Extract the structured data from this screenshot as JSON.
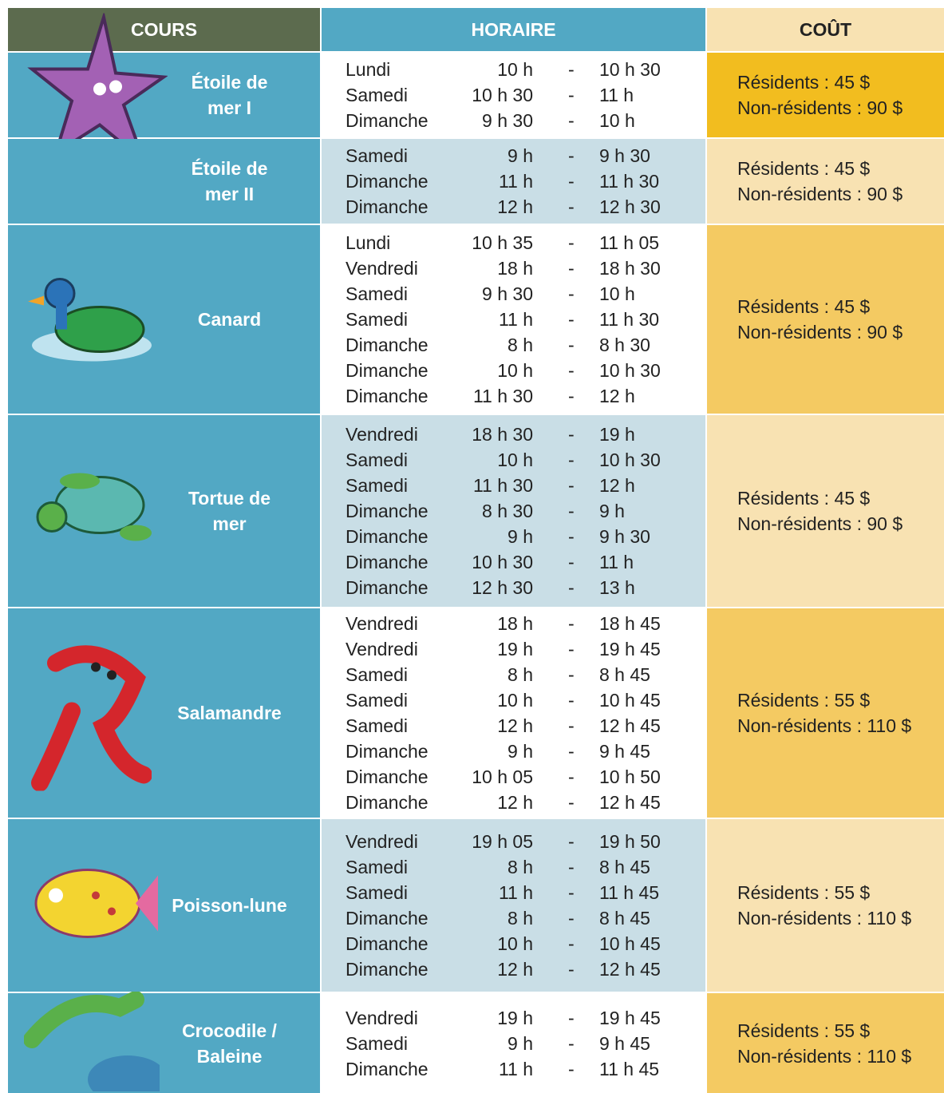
{
  "header": {
    "cours": "COURS",
    "horaire": "HORAIRE",
    "cout": "COÛT"
  },
  "separator": "-",
  "rows": [
    {
      "name": "Étoile de\nmer I",
      "schedule": [
        [
          "Lundi",
          "10 h",
          "10 h 30"
        ],
        [
          "Samedi",
          "10 h 30",
          "11 h"
        ],
        [
          "Dimanche",
          "9 h 30",
          "10 h"
        ]
      ],
      "cost": [
        "Résidents : 45 $",
        "Non-résidents : 90 $"
      ]
    },
    {
      "name": "Étoile de\nmer  II",
      "schedule": [
        [
          "Samedi",
          "9 h",
          "9 h 30"
        ],
        [
          "Dimanche",
          "11 h",
          "11 h 30"
        ],
        [
          "Dimanche",
          "12 h",
          "12 h 30"
        ]
      ],
      "cost": [
        "Résidents : 45 $",
        "Non-résidents : 90 $"
      ]
    },
    {
      "name": "Canard",
      "schedule": [
        [
          "Lundi",
          "10 h 35",
          "11 h 05"
        ],
        [
          "Vendredi",
          "18 h",
          "18 h 30"
        ],
        [
          "Samedi",
          "9 h 30",
          "10 h"
        ],
        [
          "Samedi",
          "11 h",
          "11 h 30"
        ],
        [
          "Dimanche",
          "8 h",
          "8 h 30"
        ],
        [
          "Dimanche",
          "10 h",
          "10 h 30"
        ],
        [
          "Dimanche",
          "11 h 30",
          "12 h"
        ]
      ],
      "cost": [
        "Résidents : 45 $",
        "Non-résidents : 90 $"
      ]
    },
    {
      "name": "Tortue de\nmer",
      "schedule": [
        [
          "Vendredi",
          "18 h 30",
          "19 h"
        ],
        [
          "Samedi",
          "10 h",
          "10 h 30"
        ],
        [
          "Samedi",
          "11 h 30",
          "12 h"
        ],
        [
          "Dimanche",
          "8 h 30",
          "9 h"
        ],
        [
          "Dimanche",
          "9 h",
          "9 h 30"
        ],
        [
          "Dimanche",
          "10 h 30",
          "11 h"
        ],
        [
          "Dimanche",
          "12 h 30",
          "13 h"
        ]
      ],
      "cost": [
        "Résidents : 45 $",
        "Non-résidents : 90 $"
      ]
    },
    {
      "name": "Salamandre",
      "schedule": [
        [
          "Vendredi",
          "18 h",
          "18 h 45"
        ],
        [
          "Vendredi",
          "19 h",
          "19 h 45"
        ],
        [
          "Samedi",
          "8 h",
          "8 h 45"
        ],
        [
          "Samedi",
          "10 h",
          "10 h 45"
        ],
        [
          "Samedi",
          "12 h",
          "12 h 45"
        ],
        [
          "Dimanche",
          "9 h",
          "9 h 45"
        ],
        [
          "Dimanche",
          "10 h 05",
          "10 h 50"
        ],
        [
          "Dimanche",
          "12 h",
          "12 h 45"
        ]
      ],
      "cost": [
        "Résidents : 55 $",
        "Non-résidents : 110 $"
      ]
    },
    {
      "name": "Poisson-lune",
      "schedule": [
        [
          "Vendredi",
          "19 h 05",
          "19 h 50"
        ],
        [
          "Samedi",
          "8 h",
          "8 h 45"
        ],
        [
          "Samedi",
          "11 h",
          "11 h 45"
        ],
        [
          "Dimanche",
          "8 h",
          "8 h 45"
        ],
        [
          "Dimanche",
          "10 h",
          "10 h 45"
        ],
        [
          "Dimanche",
          "12 h",
          "12 h 45"
        ]
      ],
      "cost": [
        "Résidents : 55 $",
        "Non-résidents : 110 $"
      ]
    },
    {
      "name": "Crocodile /\nBaleine",
      "schedule": [
        [
          "Vendredi",
          "19 h",
          "19 h 45"
        ],
        [
          "Samedi",
          "9 h",
          "9 h 45"
        ],
        [
          "Dimanche",
          "11 h",
          "11 h 45"
        ]
      ],
      "cost": [
        "Résidents : 55 $",
        "Non-résidents : 110 $"
      ]
    }
  ]
}
